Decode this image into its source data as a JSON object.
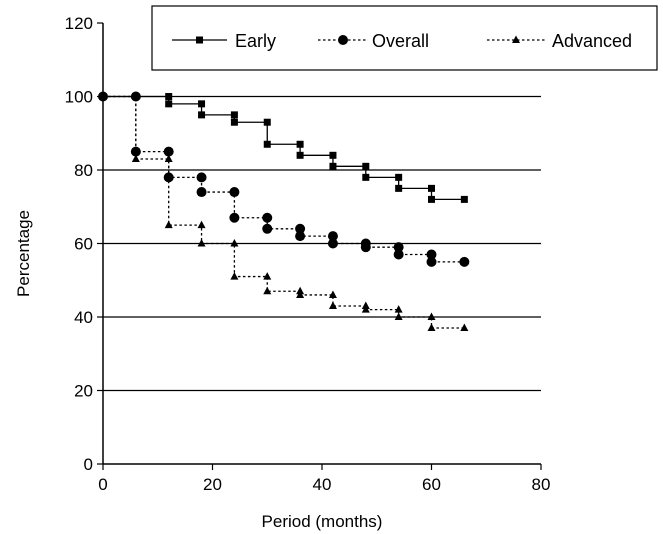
{
  "chart_data": {
    "type": "line",
    "title": "",
    "xlabel": "Period (months)",
    "ylabel": "Percentage",
    "xlim": [
      0,
      80
    ],
    "ylim": [
      0,
      120
    ],
    "xticks": [
      "0",
      "20",
      "40",
      "60",
      "80"
    ],
    "yticks": [
      "0",
      "20",
      "40",
      "60",
      "80",
      "100",
      "120"
    ],
    "grid": "horizontal",
    "legend_position": "top-right",
    "series": [
      {
        "name": "Early",
        "marker": "square",
        "line": "solid",
        "x": [
          0,
          6,
          12,
          12,
          18,
          18,
          24,
          24,
          30,
          30,
          36,
          36,
          42,
          42,
          48,
          48,
          54,
          54,
          60,
          60,
          66
        ],
        "y": [
          100,
          100,
          100,
          98,
          98,
          95,
          95,
          93,
          93,
          87,
          87,
          84,
          84,
          81,
          81,
          78,
          78,
          75,
          75,
          72,
          72
        ]
      },
      {
        "name": "Overall",
        "marker": "circle",
        "line": "dotted",
        "x": [
          0,
          6,
          6,
          12,
          12,
          18,
          18,
          24,
          24,
          30,
          30,
          36,
          36,
          42,
          42,
          48,
          48,
          54,
          54,
          60,
          60,
          66
        ],
        "y": [
          100,
          100,
          85,
          85,
          78,
          78,
          74,
          74,
          67,
          67,
          64,
          64,
          62,
          62,
          60,
          60,
          59,
          59,
          57,
          57,
          55,
          55
        ]
      },
      {
        "name": "Advanced",
        "marker": "triangle",
        "line": "dotted",
        "x": [
          0,
          6,
          6,
          12,
          12,
          18,
          18,
          24,
          24,
          30,
          30,
          36,
          36,
          42,
          42,
          48,
          48,
          54,
          54,
          60,
          60,
          66
        ],
        "y": [
          100,
          100,
          83,
          83,
          65,
          65,
          60,
          60,
          51,
          51,
          47,
          47,
          46,
          46,
          43,
          43,
          42,
          42,
          40,
          40,
          37,
          37
        ]
      }
    ]
  }
}
